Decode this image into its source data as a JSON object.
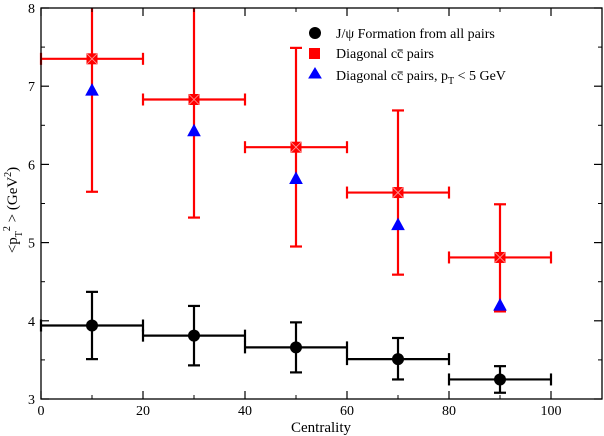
{
  "chart_data": {
    "type": "scatter",
    "title": "",
    "xlabel": "Centrality",
    "ylabel": "<p_T^2> (GeV^2)",
    "xlim": [
      0,
      110
    ],
    "ylim": [
      3,
      8
    ],
    "xticks": [
      0,
      20,
      40,
      60,
      80,
      100
    ],
    "yticks": [
      3,
      4,
      5,
      6,
      7,
      8
    ],
    "grid": false,
    "legend_position": "top-right",
    "series": [
      {
        "name": "J/ψ Formation from all pairs",
        "legend_parts": [
          "J/ψ Formation from all pairs"
        ],
        "marker": "circle",
        "color": "#000000",
        "points": [
          {
            "x": 10,
            "y": 3.94,
            "xerr": 10,
            "ylow": 3.51,
            "yhigh": 4.37
          },
          {
            "x": 30,
            "y": 3.81,
            "xerr": 10,
            "ylow": 3.43,
            "yhigh": 4.19
          },
          {
            "x": 50,
            "y": 3.66,
            "xerr": 10,
            "ylow": 3.34,
            "yhigh": 3.98
          },
          {
            "x": 70,
            "y": 3.51,
            "xerr": 10,
            "ylow": 3.25,
            "yhigh": 3.78
          },
          {
            "x": 90,
            "y": 3.25,
            "xerr": 10,
            "ylow": 3.08,
            "yhigh": 3.42
          }
        ]
      },
      {
        "name": "Diagonal cc̄ pairs",
        "legend_parts": [
          "Diagonal c",
          "c",
          " pairs"
        ],
        "marker": "square",
        "color": "#ff0000",
        "points": [
          {
            "x": 10,
            "y": 7.35,
            "xerr": 10,
            "ylow": 5.65,
            "yhigh": 8.0
          },
          {
            "x": 30,
            "y": 6.83,
            "xerr": 10,
            "ylow": 5.32,
            "yhigh": 8.0
          },
          {
            "x": 50,
            "y": 6.22,
            "xerr": 10,
            "ylow": 4.95,
            "yhigh": 7.49
          },
          {
            "x": 70,
            "y": 5.64,
            "xerr": 10,
            "ylow": 4.59,
            "yhigh": 6.69
          },
          {
            "x": 90,
            "y": 4.81,
            "xerr": 10,
            "ylow": 4.12,
            "yhigh": 5.49
          }
        ]
      },
      {
        "name": "Diagonal cc̄ pairs, p_T < 5 GeV",
        "legend_parts": [
          "Diagonal c",
          "c",
          " pairs, p",
          "T",
          " < 5 GeV"
        ],
        "marker": "triangle",
        "color": "#0000ff",
        "points": [
          {
            "x": 10,
            "y": 6.95
          },
          {
            "x": 30,
            "y": 6.43
          },
          {
            "x": 50,
            "y": 5.82
          },
          {
            "x": 70,
            "y": 5.23
          },
          {
            "x": 90,
            "y": 4.2
          }
        ]
      }
    ]
  }
}
